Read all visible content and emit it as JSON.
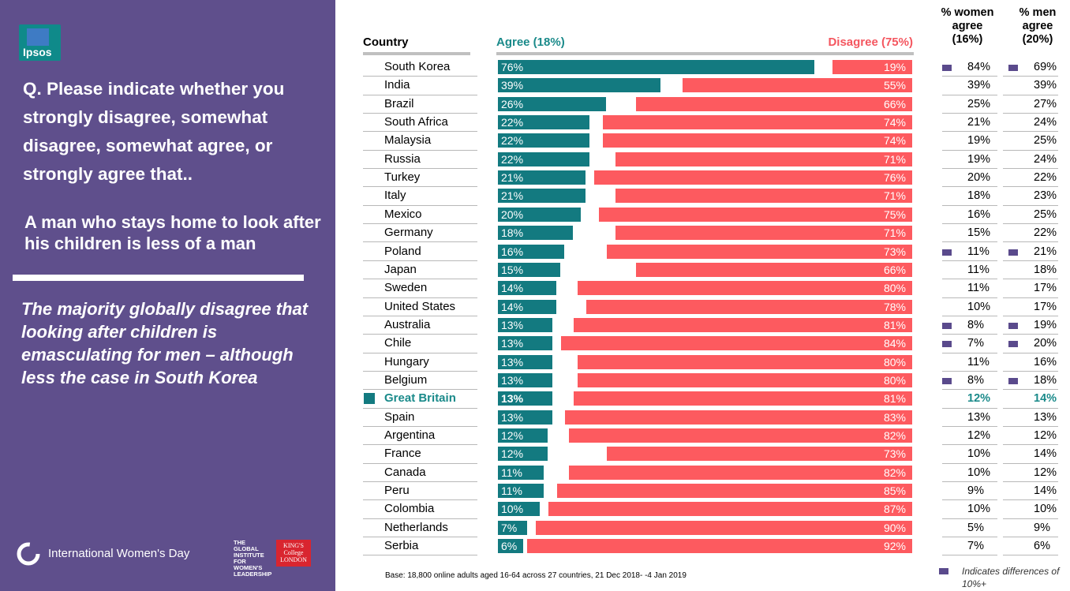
{
  "brand": {
    "logo": "Ipsos"
  },
  "question": "Q. Please indicate whether you strongly disagree, somewhat disagree, somewhat agree, or strongly agree that..",
  "statement": "A man who stays home to look after his children is less of a man",
  "finding": "The majority globally disagree that looking after children is emasculating for men – although less the case in South Korea",
  "footer": {
    "iwd": "International Women's Day",
    "giwl": "THE GLOBAL INSTITUTE FOR WOMEN'S LEADERSHIP",
    "kcl": "KING'S College LONDON",
    "base": "Base: 18,800 online adults aged 16-64 across 27 countries,  21 Dec 2018- -4 Jan  2019",
    "legend": "Indicates differences of 10%+"
  },
  "headers": {
    "country": "Country",
    "agree": "Agree (18%)",
    "disagree": "Disagree  (75%)",
    "women": "% women agree (16%)",
    "men": "% men agree (20%)"
  },
  "colors": {
    "purple": "#5f4f8c",
    "teal": "#137a80",
    "coral": "#fd5a5f",
    "highlight": "#1a8a8a"
  },
  "chart_data": {
    "type": "bar",
    "title": "A man who stays home to look after his children is less of a man",
    "series": [
      {
        "name": "Agree (18%)",
        "values": [
          76,
          39,
          26,
          22,
          22,
          22,
          21,
          21,
          20,
          18,
          16,
          15,
          14,
          14,
          13,
          13,
          13,
          13,
          13,
          13,
          12,
          12,
          11,
          11,
          10,
          7,
          6
        ]
      },
      {
        "name": "Disagree  (75%)",
        "values": [
          19,
          55,
          66,
          74,
          74,
          71,
          76,
          71,
          75,
          71,
          73,
          66,
          80,
          78,
          81,
          84,
          80,
          80,
          81,
          83,
          82,
          73,
          82,
          85,
          87,
          90,
          92
        ]
      },
      {
        "name": "% women agree (16%)",
        "values": [
          84,
          39,
          25,
          21,
          19,
          19,
          20,
          18,
          16,
          15,
          11,
          11,
          11,
          10,
          8,
          7,
          11,
          8,
          12,
          13,
          12,
          10,
          10,
          9,
          10,
          5,
          7
        ]
      },
      {
        "name": "% men agree (20%)",
        "values": [
          69,
          39,
          27,
          24,
          25,
          24,
          22,
          23,
          25,
          22,
          21,
          18,
          17,
          17,
          19,
          20,
          16,
          18,
          14,
          13,
          12,
          14,
          12,
          14,
          10,
          9,
          6
        ]
      }
    ],
    "categories": [
      "South Korea",
      "India",
      "Brazil",
      "South Africa",
      "Malaysia",
      "Russia",
      "Turkey",
      "Italy",
      "Mexico",
      "Germany",
      "Poland",
      "Japan",
      "Sweden",
      "United States",
      "Australia",
      "Chile",
      "Hungary",
      "Belgium",
      "Great Britain",
      "Spain",
      "Argentina",
      "France",
      "Canada",
      "Peru",
      "Colombia",
      "Netherlands",
      "Serbia"
    ],
    "highlight": "Great Britain",
    "flagged_diff_10plus": [
      "South Korea",
      "Poland",
      "Australia",
      "Chile",
      "Belgium"
    ],
    "rows": [
      {
        "country": "South Korea",
        "agree": "76%",
        "disagree": "19%",
        "women": "84%",
        "men": "69%",
        "flag": true
      },
      {
        "country": "India",
        "agree": "39%",
        "disagree": "55%",
        "women": "39%",
        "men": "39%",
        "flag": false
      },
      {
        "country": "Brazil",
        "agree": "26%",
        "disagree": "66%",
        "women": "25%",
        "men": "27%",
        "flag": false
      },
      {
        "country": "South Africa",
        "agree": "22%",
        "disagree": "74%",
        "women": "21%",
        "men": "24%",
        "flag": false
      },
      {
        "country": "Malaysia",
        "agree": "22%",
        "disagree": "74%",
        "women": "19%",
        "men": "25%",
        "flag": false
      },
      {
        "country": "Russia",
        "agree": "22%",
        "disagree": "71%",
        "women": "19%",
        "men": "24%",
        "flag": false
      },
      {
        "country": "Turkey",
        "agree": "21%",
        "disagree": "76%",
        "women": "20%",
        "men": "22%",
        "flag": false
      },
      {
        "country": "Italy",
        "agree": "21%",
        "disagree": "71%",
        "women": "18%",
        "men": "23%",
        "flag": false
      },
      {
        "country": "Mexico",
        "agree": "20%",
        "disagree": "75%",
        "women": "16%",
        "men": "25%",
        "flag": false
      },
      {
        "country": "Germany",
        "agree": "18%",
        "disagree": "71%",
        "women": "15%",
        "men": "22%",
        "flag": false
      },
      {
        "country": "Poland",
        "agree": "16%",
        "disagree": "73%",
        "women": "11%",
        "men": "21%",
        "flag": true
      },
      {
        "country": "Japan",
        "agree": "15%",
        "disagree": "66%",
        "women": "11%",
        "men": "18%",
        "flag": false
      },
      {
        "country": "Sweden",
        "agree": "14%",
        "disagree": "80%",
        "women": "11%",
        "men": "17%",
        "flag": false
      },
      {
        "country": "United States",
        "agree": "14%",
        "disagree": "78%",
        "women": "10%",
        "men": "17%",
        "flag": false
      },
      {
        "country": "Australia",
        "agree": "13%",
        "disagree": "81%",
        "women": "8%",
        "men": "19%",
        "flag": true
      },
      {
        "country": "Chile",
        "agree": "13%",
        "disagree": "84%",
        "women": "7%",
        "men": "20%",
        "flag": true
      },
      {
        "country": "Hungary",
        "agree": "13%",
        "disagree": "80%",
        "women": "11%",
        "men": "16%",
        "flag": false
      },
      {
        "country": "Belgium",
        "agree": "13%",
        "disagree": "80%",
        "women": "8%",
        "men": "18%",
        "flag": true
      },
      {
        "country": "Great Britain",
        "agree": "13%",
        "disagree": "81%",
        "women": "12%",
        "men": "14%",
        "flag": false
      },
      {
        "country": "Spain",
        "agree": "13%",
        "disagree": "83%",
        "women": "13%",
        "men": "13%",
        "flag": false
      },
      {
        "country": "Argentina",
        "agree": "12%",
        "disagree": "82%",
        "women": "12%",
        "men": "12%",
        "flag": false
      },
      {
        "country": "France",
        "agree": "12%",
        "disagree": "73%",
        "women": "10%",
        "men": "14%",
        "flag": false
      },
      {
        "country": "Canada",
        "agree": "11%",
        "disagree": "82%",
        "women": "10%",
        "men": "12%",
        "flag": false
      },
      {
        "country": "Peru",
        "agree": "11%",
        "disagree": "85%",
        "women": "9%",
        "men": "14%",
        "flag": false
      },
      {
        "country": "Colombia",
        "agree": "10%",
        "disagree": "87%",
        "women": "10%",
        "men": "10%",
        "flag": false
      },
      {
        "country": "Netherlands",
        "agree": "7%",
        "disagree": "90%",
        "women": "5%",
        "men": "9%",
        "flag": false
      },
      {
        "country": "Serbia",
        "agree": "6%",
        "disagree": "92%",
        "women": "7%",
        "men": "6%",
        "flag": false
      }
    ]
  }
}
